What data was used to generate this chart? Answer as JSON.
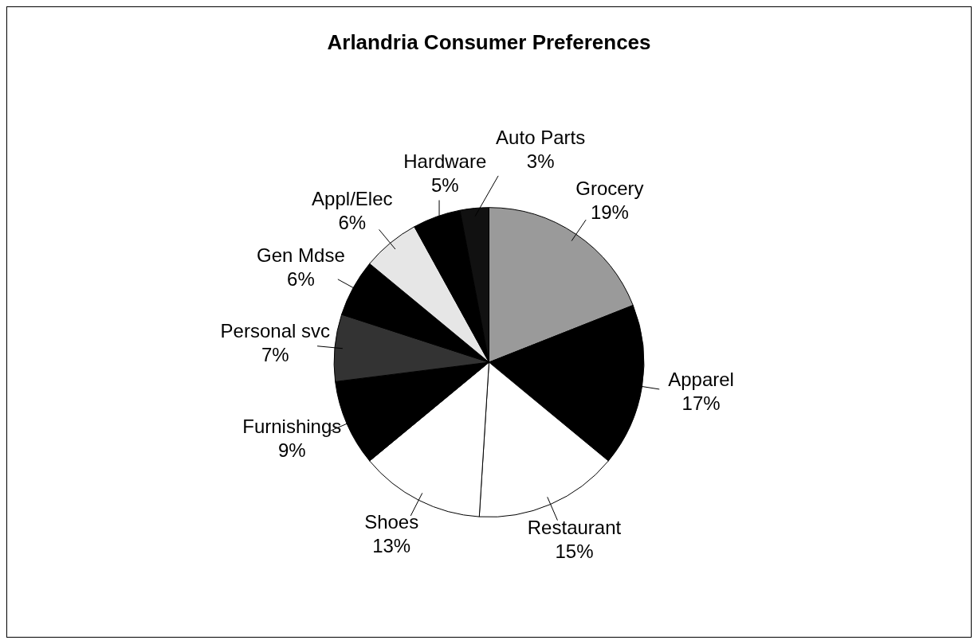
{
  "chart_data": {
    "type": "pie",
    "title": "Arlandria Consumer Preferences",
    "categories": [
      "Grocery",
      "Apparel",
      "Restaurant",
      "Shoes",
      "Furnishings",
      "Personal svc",
      "Gen Mdse",
      "Appl/Elec",
      "Hardware",
      "Auto Parts"
    ],
    "values": [
      19,
      17,
      15,
      13,
      9,
      7,
      6,
      6,
      5,
      3
    ],
    "value_labels": [
      "19%",
      "17%",
      "15%",
      "13%",
      "9%",
      "7%",
      "6%",
      "6%",
      "5%",
      "3%"
    ],
    "colors": [
      "#9a9a9a",
      "#000000",
      "#ffffff",
      "#ffffff",
      "#000000",
      "#333333",
      "#000000",
      "#e6e6e6",
      "#000000",
      "#111111"
    ],
    "legend": false
  }
}
